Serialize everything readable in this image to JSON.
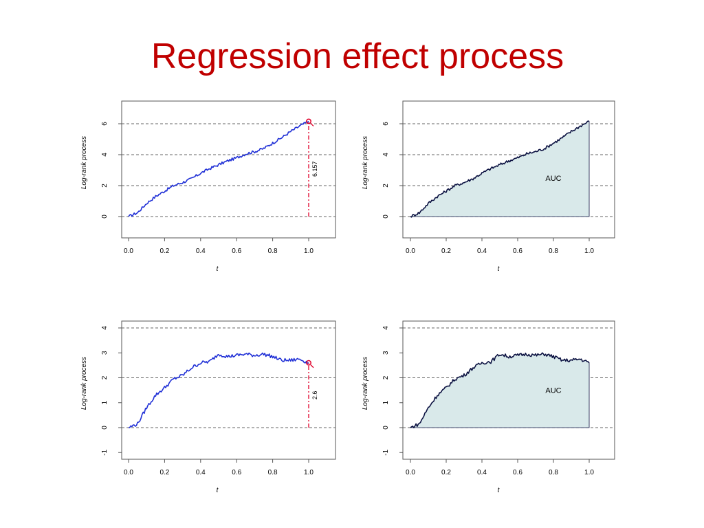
{
  "slide": {
    "title": "Regression effect process"
  },
  "colors": {
    "title": "#c00000",
    "blue_line": "#1f2fd6",
    "navy_line": "#0a1040",
    "marker": "#e0002a",
    "fill": "#d9e9ea"
  },
  "chart_data": [
    {
      "id": "top-left",
      "type": "line",
      "xlabel": "t",
      "ylabel": "Log-rank process",
      "xlim": [
        0,
        1
      ],
      "ylim": [
        0,
        6
      ],
      "xticks": [
        "0.0",
        "0.2",
        "0.4",
        "0.6",
        "0.8",
        "1.0"
      ],
      "yticks": [
        "0",
        "2",
        "4",
        "6"
      ],
      "dashed_h": [
        0,
        2,
        4,
        6
      ],
      "series": [
        {
          "name": "process",
          "x": [
            0,
            0.05,
            0.1,
            0.15,
            0.2,
            0.25,
            0.3,
            0.35,
            0.4,
            0.45,
            0.5,
            0.55,
            0.6,
            0.65,
            0.7,
            0.75,
            0.8,
            0.85,
            0.9,
            0.95,
            1.0
          ],
          "values": [
            0,
            0.25,
            0.85,
            1.3,
            1.65,
            2.0,
            2.2,
            2.45,
            2.8,
            3.1,
            3.35,
            3.6,
            3.8,
            4.05,
            4.2,
            4.4,
            4.75,
            5.1,
            5.5,
            5.85,
            6.157
          ]
        }
      ],
      "annotation": {
        "label": "6.157",
        "x": 1.0,
        "value": 6.157
      },
      "auc": null,
      "line_color": "#1f2fd6"
    },
    {
      "id": "top-right",
      "type": "area",
      "xlabel": "t",
      "ylabel": "Log-rank process",
      "xlim": [
        0,
        1
      ],
      "ylim": [
        0,
        6
      ],
      "xticks": [
        "0.0",
        "0.2",
        "0.4",
        "0.6",
        "0.8",
        "1.0"
      ],
      "yticks": [
        "0",
        "2",
        "4",
        "6"
      ],
      "dashed_h": [
        0,
        2,
        4,
        6
      ],
      "series": [
        {
          "name": "process",
          "x": [
            0,
            0.05,
            0.1,
            0.15,
            0.2,
            0.25,
            0.3,
            0.35,
            0.4,
            0.45,
            0.5,
            0.55,
            0.6,
            0.65,
            0.7,
            0.75,
            0.8,
            0.85,
            0.9,
            0.95,
            1.0
          ],
          "values": [
            0,
            0.25,
            0.85,
            1.3,
            1.65,
            2.0,
            2.2,
            2.45,
            2.8,
            3.1,
            3.35,
            3.6,
            3.8,
            4.05,
            4.2,
            4.4,
            4.75,
            5.1,
            5.5,
            5.85,
            6.157
          ]
        }
      ],
      "annotation": null,
      "auc": {
        "label": "AUC",
        "x": 0.8,
        "value": 2.5
      },
      "line_color": "#0a1040"
    },
    {
      "id": "bottom-left",
      "type": "line",
      "xlabel": "t",
      "ylabel": "Log-rank process",
      "xlim": [
        0,
        1
      ],
      "ylim": [
        -1,
        4
      ],
      "xticks": [
        "0.0",
        "0.2",
        "0.4",
        "0.6",
        "0.8",
        "1.0"
      ],
      "yticks": [
        "-1",
        "0",
        "1",
        "2",
        "3",
        "4"
      ],
      "dashed_h": [
        0,
        2,
        4
      ],
      "series": [
        {
          "name": "process",
          "x": [
            0,
            0.05,
            0.1,
            0.15,
            0.2,
            0.25,
            0.3,
            0.35,
            0.4,
            0.45,
            0.5,
            0.55,
            0.6,
            0.65,
            0.7,
            0.75,
            0.8,
            0.85,
            0.9,
            0.95,
            1.0
          ],
          "values": [
            0,
            0.15,
            0.8,
            1.3,
            1.6,
            1.95,
            2.1,
            2.4,
            2.6,
            2.65,
            2.95,
            2.85,
            2.9,
            2.95,
            2.9,
            2.95,
            2.85,
            2.7,
            2.7,
            2.75,
            2.6
          ]
        }
      ],
      "annotation": {
        "label": "2.6",
        "x": 1.0,
        "value": 2.6
      },
      "auc": null,
      "line_color": "#1f2fd6"
    },
    {
      "id": "bottom-right",
      "type": "area",
      "xlabel": "t",
      "ylabel": "Log-rank process",
      "xlim": [
        0,
        1
      ],
      "ylim": [
        -1,
        4
      ],
      "xticks": [
        "0.0",
        "0.2",
        "0.4",
        "0.6",
        "0.8",
        "1.0"
      ],
      "yticks": [
        "-1",
        "0",
        "1",
        "2",
        "3",
        "4"
      ],
      "dashed_h": [
        0,
        2,
        4
      ],
      "series": [
        {
          "name": "process",
          "x": [
            0,
            0.05,
            0.1,
            0.15,
            0.2,
            0.25,
            0.3,
            0.35,
            0.4,
            0.45,
            0.5,
            0.55,
            0.6,
            0.65,
            0.7,
            0.75,
            0.8,
            0.85,
            0.9,
            0.95,
            1.0
          ],
          "values": [
            0,
            0.15,
            0.8,
            1.3,
            1.6,
            1.95,
            2.1,
            2.4,
            2.6,
            2.65,
            2.95,
            2.85,
            2.9,
            2.95,
            2.9,
            2.95,
            2.85,
            2.7,
            2.7,
            2.75,
            2.6
          ]
        }
      ],
      "annotation": null,
      "auc": {
        "label": "AUC",
        "x": 0.8,
        "value": 1.5
      },
      "line_color": "#0a1040"
    }
  ]
}
